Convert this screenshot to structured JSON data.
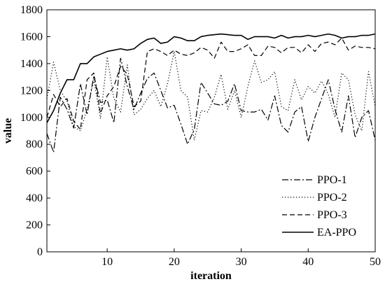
{
  "chart_data": {
    "type": "line",
    "xlabel": "iteration",
    "ylabel": "value",
    "xlim": [
      1,
      50
    ],
    "ylim": [
      0,
      1800
    ],
    "xticks": [
      10,
      20,
      30,
      40,
      50
    ],
    "yticks": [
      0,
      200,
      400,
      600,
      800,
      1000,
      1200,
      1400,
      1600,
      1800
    ],
    "grid": false,
    "legend_position": "bottom-right",
    "x": [
      1,
      2,
      3,
      4,
      5,
      6,
      7,
      8,
      9,
      10,
      11,
      12,
      13,
      14,
      15,
      16,
      17,
      18,
      19,
      20,
      21,
      22,
      23,
      24,
      25,
      26,
      27,
      28,
      29,
      30,
      31,
      32,
      33,
      34,
      35,
      36,
      37,
      38,
      39,
      40,
      41,
      42,
      43,
      44,
      45,
      46,
      47,
      48,
      49,
      50
    ],
    "series": [
      {
        "name": "PPO-1",
        "style": "dashdot",
        "values": [
          880,
          740,
          1150,
          1060,
          920,
          1250,
          1020,
          1310,
          1110,
          1130,
          960,
          1440,
          1230,
          1060,
          1180,
          1290,
          1330,
          1200,
          1070,
          1090,
          950,
          800,
          910,
          1260,
          1180,
          1100,
          1090,
          1120,
          1250,
          1050,
          1040,
          1040,
          1060,
          980,
          1160,
          940,
          890,
          1040,
          1080,
          820,
          1000,
          1140,
          1280,
          1060,
          890,
          1160,
          850,
          1000,
          1050,
          830
        ]
      },
      {
        "name": "PPO-2",
        "style": "dotted",
        "values": [
          1140,
          1410,
          1200,
          1120,
          930,
          900,
          1060,
          1280,
          990,
          1450,
          1140,
          1040,
          1390,
          1020,
          1060,
          1140,
          1200,
          1080,
          1250,
          1490,
          1200,
          1150,
          830,
          1050,
          1040,
          1150,
          1320,
          1060,
          1200,
          1000,
          1230,
          1420,
          1260,
          1280,
          1340,
          1080,
          1050,
          1280,
          1130,
          1230,
          1180,
          1270,
          1170,
          1000,
          1330,
          1280,
          1020,
          900,
          1340,
          1080
        ]
      },
      {
        "name": "PPO-3",
        "style": "dashed",
        "values": [
          1000,
          1170,
          1080,
          1140,
          970,
          910,
          1280,
          1330,
          1030,
          1160,
          1230,
          1380,
          1320,
          1080,
          1120,
          1490,
          1510,
          1490,
          1460,
          1500,
          1470,
          1460,
          1480,
          1520,
          1500,
          1440,
          1560,
          1490,
          1490,
          1510,
          1540,
          1460,
          1460,
          1530,
          1520,
          1480,
          1520,
          1520,
          1480,
          1540,
          1490,
          1550,
          1560,
          1540,
          1590,
          1500,
          1530,
          1520,
          1520,
          1510
        ]
      },
      {
        "name": "EA-PPO",
        "style": "solid",
        "values": [
          960,
          1050,
          1180,
          1280,
          1280,
          1400,
          1400,
          1450,
          1470,
          1490,
          1500,
          1510,
          1500,
          1510,
          1550,
          1580,
          1590,
          1550,
          1560,
          1600,
          1590,
          1570,
          1570,
          1600,
          1610,
          1615,
          1620,
          1615,
          1610,
          1610,
          1580,
          1600,
          1600,
          1600,
          1590,
          1610,
          1590,
          1600,
          1600,
          1610,
          1600,
          1610,
          1620,
          1610,
          1590,
          1600,
          1600,
          1610,
          1610,
          1620
        ]
      }
    ]
  },
  "legend": {
    "entries": [
      "PPO-1",
      "PPO-2",
      "PPO-3",
      "EA-PPO"
    ]
  }
}
